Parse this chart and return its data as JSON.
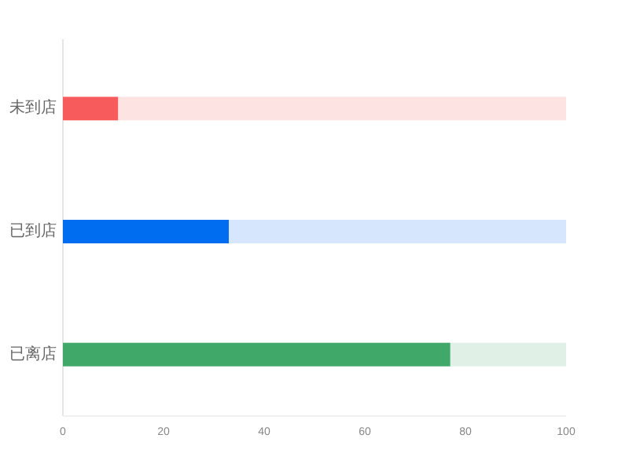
{
  "chart_data": {
    "type": "bar",
    "orientation": "horizontal",
    "stacked": true,
    "categories": [
      "未到店",
      "已到店",
      "已离店"
    ],
    "series": [
      {
        "colors": [
          "#f75b5b",
          "#006cf0",
          "#40a96a"
        ],
        "values": [
          11,
          33,
          77
        ]
      },
      {
        "colors": [
          "#fee3e3",
          "#d6e6fd",
          "#e0f0e6"
        ],
        "values": [
          89,
          67,
          23
        ]
      }
    ],
    "xlim": [
      0,
      100
    ],
    "xticks": [
      0,
      20,
      40,
      60,
      80,
      100
    ],
    "grid": false
  }
}
